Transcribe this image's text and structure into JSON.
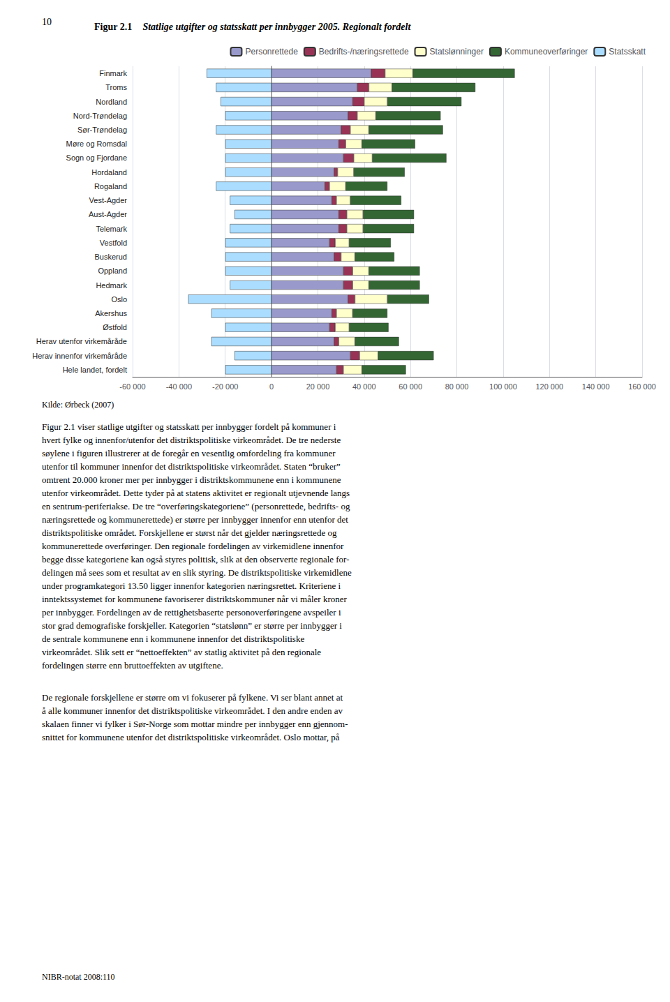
{
  "chart_data": {
    "type": "bar",
    "orientation": "horizontal",
    "stacked": true,
    "title": "Figur 2.1",
    "subtitle": "Statlige utgifter og statsskatt per innbygger 2005. Regionalt fordelt",
    "annotations": [
      "10",
      "Kilde: Ørbeck (2007)",
      "Figur 2.1 viser statlige utgifter og statsskatt per innbygger fordelt på kommuner i\nhvert fylke og innenfor/utenfor det distriktspolitiske virkeområdet. De tre nederste\nsøylene i figuren illustrerer at de foregår en vesentlig omfordeling fra kommuner\nutenfor til kommuner innenfor det distriktspolitiske virkeområdet. Staten “bruker”\nomtrent 20.000 kroner mer per innbygger i distriktskommunene enn i kommunene\nutenfor virkeområdet. Dette tyder på at statens aktivitet er regionalt utjevnende langs\nen sentrum-periferiakse. De tre “overføringskategoriene” (personrettede, bedrifts- og\nnæringsrettede og kommunerettede) er større per innbygger innenfor enn utenfor det\ndistriktspolitiske området. Forskjellene er størst når det gjelder næringsrettede og\nkommunerettede overføringer. Den regionale fordelingen av virkemidlene innenfor\nbegge disse kategoriene kan også styres politisk, slik at den observerte regionale for-\ndelingen må sees som et resultat av en slik styring. De distriktspolitiske virkemidlene\nunder programkategori 13.50 ligger innenfor kategorien næringsrettet. Kriteriene i\ninntektssystemet for kommunene favoriserer distriktskommuner når vi måler kroner\nper innbygger. Fordelingen av de rettighetsbaserte personoverføringene avspeiler i\nstor grad demografiske forskjeller. Kategorien “statslønn” er større per innbygger i\nde sentrale kommunene enn i kommunene innenfor det distriktspolitiske\nvirkeområdet. Slik sett er “nettoeffekten” av statlig aktivitet på den regionale\nfordelingen større enn bruttoeffekten av utgiftene.",
      "De regionale forskjellene er større om vi fokuserer på fylkene. Vi ser blant annet at\nå alle kommuner innenfor det distriktspolitiske virkeområdet. I den andre enden av\nskalaen finner vi fylker i Sør-Norge som mottar mindre per innbygger enn gjennom-\nsnittet for kommunene utenfor det distriktspolitiske virkeområdet. Oslo mottar, på",
      "NIBR-notat 2008:110"
    ],
    "categories": [
      "Finmark",
      "Troms",
      "Nordland",
      "Nord-Trøndelag",
      "Sør-Trøndelag",
      "Møre og Romsdal",
      "Sogn og Fjordane",
      "Hordaland",
      "Rogaland",
      "Vest-Agder",
      "Aust-Agder",
      "Telemark",
      "Vestfold",
      "Buskerud",
      "Oppland",
      "Hedmark",
      "Oslo",
      "Akershus",
      "Østfold",
      "Herav utenfor virkemåråde",
      "Herav innenfor virkemåråde",
      "Hele landet, fordelt"
    ],
    "series": [
      {
        "name": "Personrettede",
        "color": "#9999cc",
        "values": [
          43000,
          37000,
          35000,
          33000,
          30000,
          29000,
          31000,
          27000,
          23000,
          26000,
          29000,
          29000,
          25000,
          27000,
          31000,
          31000,
          33000,
          26000,
          25000,
          27000,
          34000,
          28000
        ]
      },
      {
        "name": "Bedrifts-/næringsrettede",
        "color": "#993355",
        "values": [
          6000,
          5000,
          5000,
          4000,
          4000,
          3000,
          4500,
          1500,
          2000,
          2000,
          3500,
          3500,
          2500,
          3000,
          4000,
          4000,
          3000,
          2000,
          2500,
          2000,
          4000,
          3000
        ]
      },
      {
        "name": "Statslønninger",
        "color": "#ffffcc",
        "values": [
          12000,
          10000,
          10000,
          8000,
          8000,
          7000,
          8000,
          7000,
          7000,
          6000,
          7000,
          7000,
          6000,
          6000,
          7000,
          7000,
          14000,
          7000,
          6000,
          7000,
          8000,
          8000
        ]
      },
      {
        "name": "Kommuneoverføringer",
        "color": "#336633",
        "values": [
          44000,
          36000,
          32000,
          28000,
          32000,
          23000,
          32000,
          22000,
          18000,
          22000,
          22000,
          22000,
          18000,
          17000,
          22000,
          22000,
          18000,
          15000,
          17000,
          19000,
          24000,
          19000
        ]
      },
      {
        "name": "Statsskatt",
        "color": "#aaddff",
        "values": [
          -28000,
          -24000,
          -22000,
          -20000,
          -24000,
          -20000,
          -20000,
          -20000,
          -24000,
          -18000,
          -16000,
          -18000,
          -20000,
          -20000,
          -20000,
          -18000,
          -36000,
          -26000,
          -20000,
          -26000,
          -16000,
          -20000
        ]
      }
    ],
    "xlim": [
      -60000,
      160000
    ],
    "xticks": [
      {
        "value": -60000,
        "label": "-60 000"
      },
      {
        "value": -40000,
        "label": "-40 000"
      },
      {
        "value": -20000,
        "label": "-20 000"
      },
      0,
      {
        "value": 20000,
        "label": "20 000"
      },
      {
        "value": 40000,
        "label": "40 000"
      },
      {
        "value": 60000,
        "label": "60 000"
      },
      {
        "value": 80000,
        "label": "80 000"
      },
      {
        "value": 100000,
        "label": "100 000"
      },
      {
        "value": 120000,
        "label": "120 000"
      },
      {
        "value": 140000,
        "label": "140 000"
      },
      {
        "value": 160000,
        "label": "160 000"
      }
    ],
    "grid": true,
    "legend": "upper right"
  }
}
